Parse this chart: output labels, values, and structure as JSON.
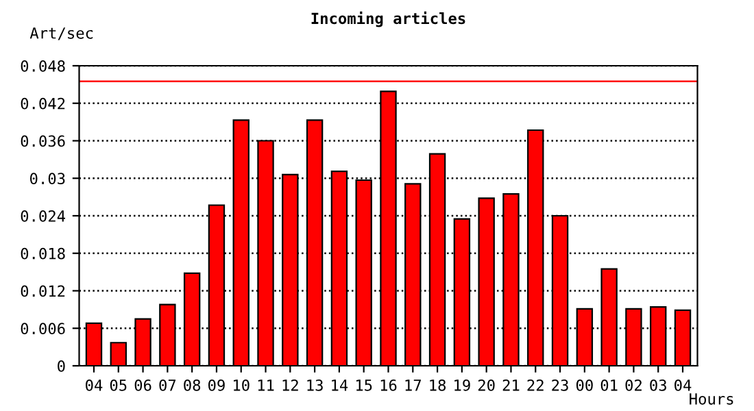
{
  "chart_data": {
    "type": "bar",
    "title": "Incoming articles",
    "ylabel": "Art/sec",
    "xlabel": "Hours",
    "categories": [
      "04",
      "05",
      "06",
      "07",
      "08",
      "09",
      "10",
      "11",
      "12",
      "13",
      "14",
      "15",
      "16",
      "17",
      "18",
      "19",
      "20",
      "21",
      "22",
      "23",
      "00",
      "01",
      "02",
      "03",
      "04"
    ],
    "values": [
      0.0068,
      0.0037,
      0.0075,
      0.0098,
      0.0148,
      0.0257,
      0.0393,
      0.036,
      0.0306,
      0.0393,
      0.0311,
      0.0297,
      0.0439,
      0.0291,
      0.0339,
      0.0235,
      0.0268,
      0.0275,
      0.0377,
      0.024,
      0.0091,
      0.0155,
      0.0091,
      0.0094,
      0.0089
    ],
    "color": "#ff0000",
    "ylim": [
      0,
      0.048
    ],
    "yticks": [
      0,
      0.006,
      0.012,
      0.018,
      0.024,
      0.03,
      0.036,
      0.042,
      0.048
    ],
    "grid": "y",
    "line_style": "dotted",
    "ref_lines": [
      {
        "axis": "y",
        "value": 0.0455,
        "color": "#ff0000"
      }
    ]
  }
}
